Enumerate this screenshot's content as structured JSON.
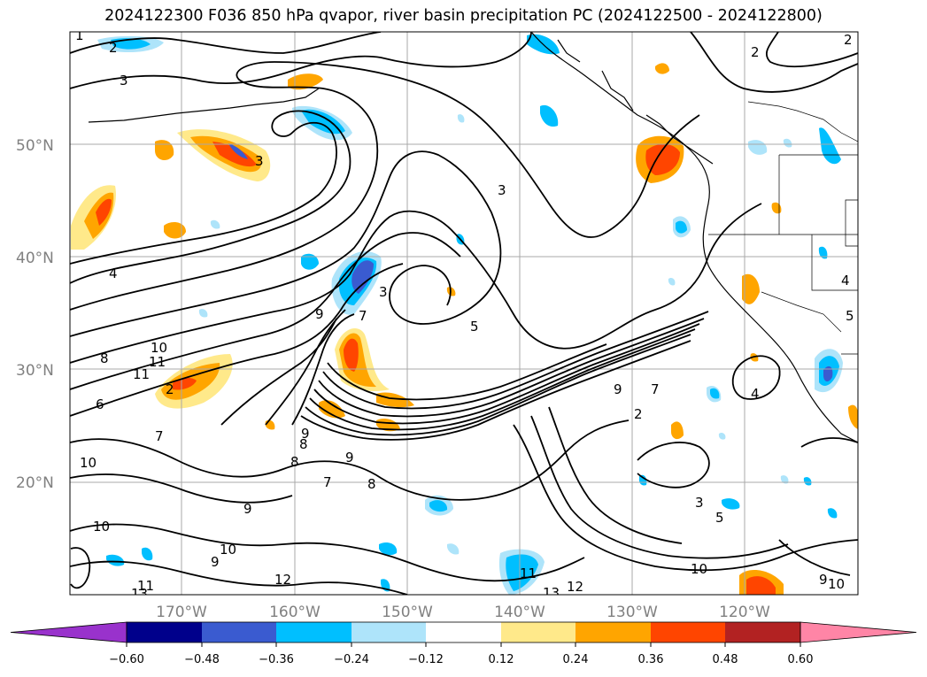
{
  "title": "2024122300 F036 850 hPa qvapor, river basin precipitation PC (2024122500 - 2024122800)",
  "map": {
    "lat_ticks": [
      "20°N",
      "30°N",
      "40°N",
      "50°N"
    ],
    "lon_ticks": [
      "170°W",
      "160°W",
      "150°W",
      "140°W",
      "130°W",
      "120°W"
    ],
    "contour_labels": [
      "1",
      "2",
      "2",
      "2",
      "3",
      "3",
      "3",
      "4",
      "8",
      "10",
      "11",
      "11",
      "2",
      "6",
      "7",
      "10",
      "8",
      "9",
      "9",
      "8",
      "7",
      "8",
      "9",
      "10",
      "10",
      "11",
      "12",
      "13",
      "9",
      "11",
      "12",
      "13",
      "3",
      "7",
      "9",
      "9",
      "7",
      "2",
      "4",
      "3",
      "5",
      "10",
      "9",
      "10",
      "4",
      "5",
      "5"
    ]
  },
  "colorbar": {
    "ticks": [
      "−0.60",
      "−0.48",
      "−0.36",
      "−0.24",
      "−0.12",
      "0.12",
      "0.24",
      "0.36",
      "0.48",
      "0.60"
    ],
    "colors": [
      "#9932cc",
      "#00008b",
      "#3a5bd0",
      "#00bfff",
      "#aee4fa",
      "#ffffff",
      "#ffe98a",
      "#ffa500",
      "#ff4500",
      "#b22222",
      "#ff85a6"
    ]
  }
}
